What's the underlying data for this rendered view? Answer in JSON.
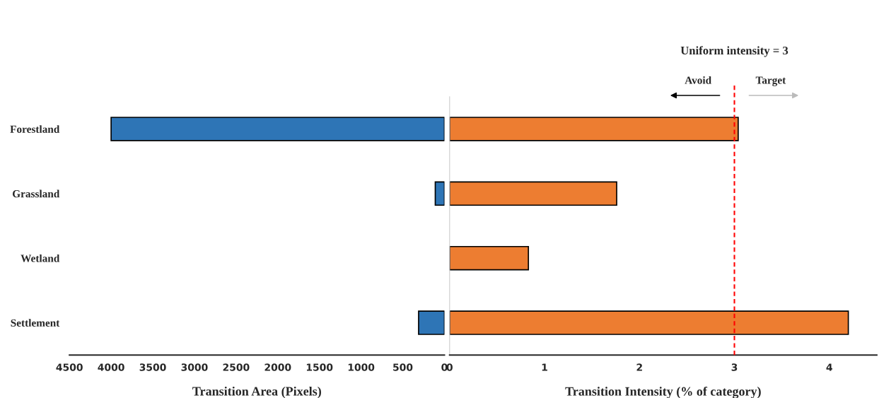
{
  "chart_data": [
    {
      "type": "bar",
      "orientation": "horizontal",
      "categories": [
        "Forestland",
        "Grassland",
        "Wetland",
        "Settlement"
      ],
      "values": [
        4000,
        110,
        0,
        310
      ],
      "color": "#2e75b6",
      "xlim": [
        4500,
        0
      ],
      "xticks": [
        4500,
        4000,
        3500,
        3000,
        2500,
        2000,
        1500,
        1000,
        500,
        0
      ],
      "xlabel": "Transition Area (Pixels)"
    },
    {
      "type": "bar",
      "orientation": "horizontal",
      "values": [
        3.04,
        1.76,
        0.83,
        4.2
      ],
      "color": "#ed7d31",
      "xlim": [
        0,
        4.5
      ],
      "xticks": [
        0,
        1,
        2,
        3,
        4
      ],
      "xlabel": "Transition Intensity (% of category)",
      "ref_lines": [
        {
          "axis": "x",
          "value": 3,
          "label": "Uniform intensity = 3",
          "color": "#ff0000",
          "line_style": "dashed"
        }
      ],
      "annotations": [
        "Avoid",
        "Target"
      ]
    }
  ]
}
